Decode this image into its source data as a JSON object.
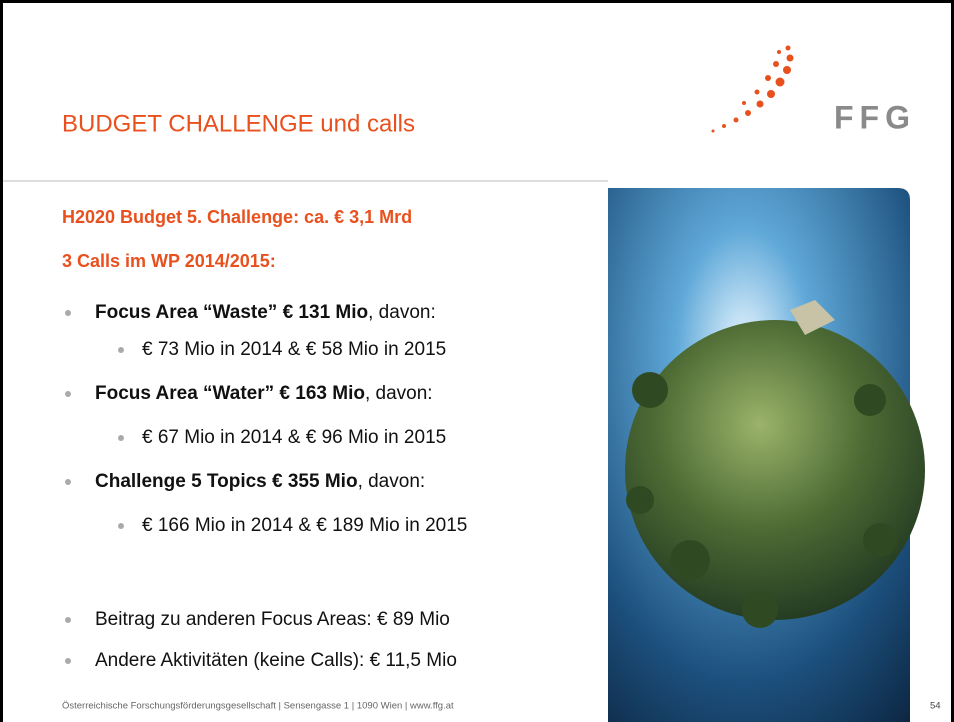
{
  "header": {
    "title": "BUDGET CHALLENGE und calls",
    "logo_text": "FFG"
  },
  "body": {
    "headings": [
      "H2020 Budget 5. Challenge: ca. € 3,1 Mrd",
      "3 Calls im WP 2014/2015:"
    ],
    "items": [
      {
        "bold": "Focus Area “Waste” € 131 Mio",
        "text": ", davon:",
        "sub": "€ 73 Mio in 2014 & € 58 Mio in 2015"
      },
      {
        "bold": "Focus Area “Water” € 163 Mio",
        "text": ", davon:",
        "sub": "€ 67 Mio in 2014 & € 96 Mio in 2015"
      },
      {
        "bold": "Challenge 5 Topics € 355 Mio",
        "text": ", davon:",
        "sub": "€ 166 Mio in 2014 & € 189 Mio in 2015"
      }
    ],
    "extra": [
      "Beitrag zu anderen Focus Areas: € 89 Mio",
      "Andere Aktivitäten (keine Calls): € 11,5 Mio"
    ]
  },
  "footer": {
    "text": "Österreichische Forschungsförderungsgesellschaft | Sensengasse 1 | 1090 Wien | www.ffg.at",
    "page": "54"
  }
}
